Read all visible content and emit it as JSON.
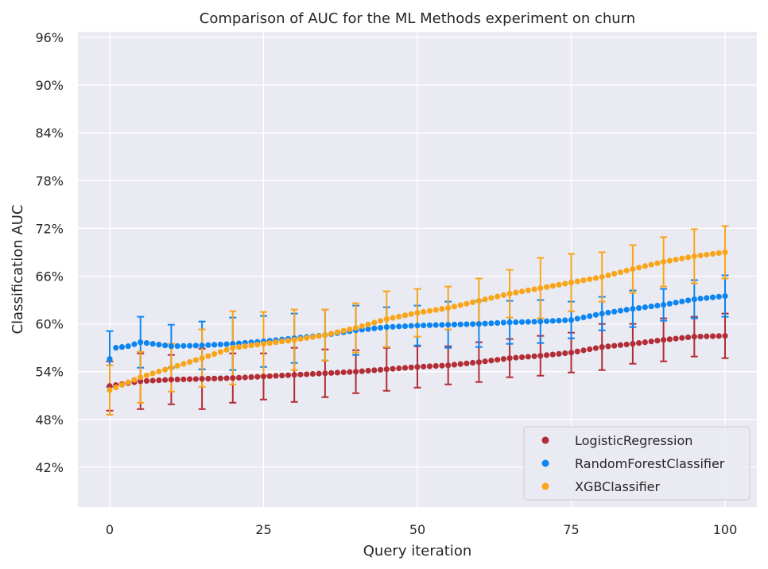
{
  "chart_data": {
    "type": "scatter",
    "title": "Comparison of AUC for the ML Methods experiment on churn",
    "xlabel": "Query iteration",
    "ylabel": "Classification AUC",
    "xlim": [
      -5,
      105
    ],
    "ylim": [
      0.4,
      1.0
    ],
    "xticks": [
      0,
      25,
      50,
      75,
      100
    ],
    "xtick_labels": [
      "0",
      "25",
      "50",
      "75",
      "100"
    ],
    "yticks": [
      0.42,
      0.48,
      0.54,
      0.6,
      0.66,
      0.72,
      0.78,
      0.84,
      0.9,
      0.96
    ],
    "ytick_labels": [
      "42%",
      "48%",
      "54%",
      "60%",
      "66%",
      "72%",
      "78%",
      "84%",
      "90%",
      "96%"
    ],
    "grid": true,
    "legend_position": "bottom-right",
    "errorbar_every": 5,
    "series": [
      {
        "name": "LogisticRegression",
        "color": "#b22d36",
        "anchors_x": [
          0,
          5,
          10,
          15,
          20,
          25,
          30,
          35,
          40,
          45,
          50,
          55,
          60,
          65,
          70,
          75,
          80,
          85,
          90,
          95,
          100
        ],
        "anchors_y": [
          0.522,
          0.528,
          0.53,
          0.531,
          0.532,
          0.534,
          0.536,
          0.538,
          0.54,
          0.543,
          0.546,
          0.548,
          0.552,
          0.557,
          0.56,
          0.564,
          0.571,
          0.575,
          0.58,
          0.584,
          0.585
        ],
        "err_x": [
          0,
          5,
          10,
          15,
          20,
          25,
          30,
          35,
          40,
          45,
          50,
          55,
          60,
          65,
          70,
          75,
          80,
          85,
          90,
          95,
          100
        ],
        "err": [
          0.031,
          0.035,
          0.031,
          0.038,
          0.031,
          0.029,
          0.034,
          0.03,
          0.027,
          0.027,
          0.026,
          0.024,
          0.025,
          0.024,
          0.025,
          0.025,
          0.029,
          0.025,
          0.027,
          0.025,
          0.028
        ]
      },
      {
        "name": "RandomForestClassifier",
        "color": "#0d85f0",
        "anchors_x": [
          0,
          1,
          3,
          5,
          8,
          10,
          15,
          20,
          25,
          30,
          35,
          40,
          45,
          50,
          55,
          60,
          65,
          70,
          75,
          80,
          85,
          90,
          95,
          100
        ],
        "anchors_y": [
          0.556,
          0.57,
          0.572,
          0.577,
          0.574,
          0.572,
          0.573,
          0.575,
          0.578,
          0.582,
          0.586,
          0.592,
          0.596,
          0.598,
          0.599,
          0.6,
          0.602,
          0.603,
          0.605,
          0.613,
          0.619,
          0.624,
          0.631,
          0.635
        ],
        "err_x": [
          0,
          5,
          10,
          15,
          20,
          25,
          30,
          35,
          40,
          45,
          50,
          55,
          60,
          65,
          70,
          75,
          80,
          85,
          90,
          95,
          100
        ],
        "err": [
          0.035,
          0.032,
          0.027,
          0.03,
          0.033,
          0.032,
          0.031,
          0.032,
          0.031,
          0.025,
          0.025,
          0.029,
          0.029,
          0.027,
          0.027,
          0.023,
          0.021,
          0.023,
          0.02,
          0.024,
          0.026
        ]
      },
      {
        "name": "XGBClassifier",
        "color": "#f9a51a",
        "anchors_x": [
          0,
          5,
          10,
          15,
          20,
          25,
          30,
          35,
          40,
          45,
          50,
          55,
          60,
          65,
          70,
          75,
          80,
          85,
          90,
          95,
          100
        ],
        "anchors_y": [
          0.517,
          0.533,
          0.545,
          0.557,
          0.57,
          0.575,
          0.58,
          0.586,
          0.595,
          0.606,
          0.614,
          0.62,
          0.629,
          0.638,
          0.645,
          0.652,
          0.659,
          0.669,
          0.678,
          0.685,
          0.69
        ]
      }
    ],
    "xgb_err_x": [
      0,
      5,
      10,
      15,
      20,
      25,
      30,
      35,
      40,
      45,
      50,
      55,
      60,
      65,
      70,
      75,
      80,
      85,
      90,
      95,
      100
    ],
    "xgb_err": [
      0.031,
      0.032,
      0.03,
      0.036,
      0.046,
      0.04,
      0.038,
      0.032,
      0.031,
      0.035,
      0.03,
      0.027,
      0.028,
      0.03,
      0.038,
      0.036,
      0.031,
      0.03,
      0.031,
      0.034,
      0.033
    ]
  }
}
